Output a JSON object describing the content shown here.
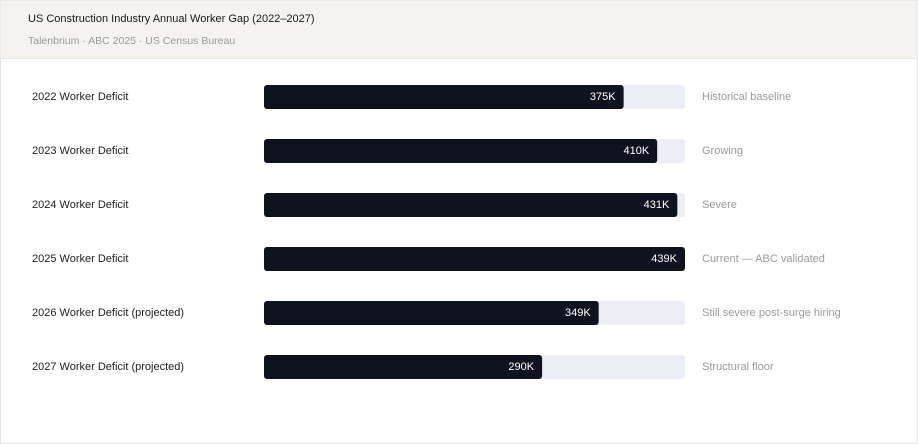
{
  "chart_data": {
    "type": "bar",
    "orientation": "horizontal",
    "title": "US Construction Industry Annual Worker Gap (2022–2027)",
    "subtitle": "Talenbrium · ABC 2025 · US Census Bureau",
    "categories": [
      "2022 Worker Deficit",
      "2023 Worker Deficit",
      "2024 Worker Deficit",
      "2025 Worker Deficit",
      "2026 Worker Deficit (projected)",
      "2027 Worker Deficit (projected)"
    ],
    "values": [
      375,
      410,
      431,
      439,
      349,
      290
    ],
    "value_labels": [
      "375K",
      "410K",
      "431K",
      "439K",
      "349K",
      "290K"
    ],
    "annotations": [
      "Historical baseline",
      "Growing",
      "Severe",
      "Current — ABC validated",
      "Still severe post-surge hiring",
      "Structural floor"
    ],
    "color": "#0f1320",
    "track_color": "#eceef4",
    "xlim": [
      0,
      439
    ]
  }
}
